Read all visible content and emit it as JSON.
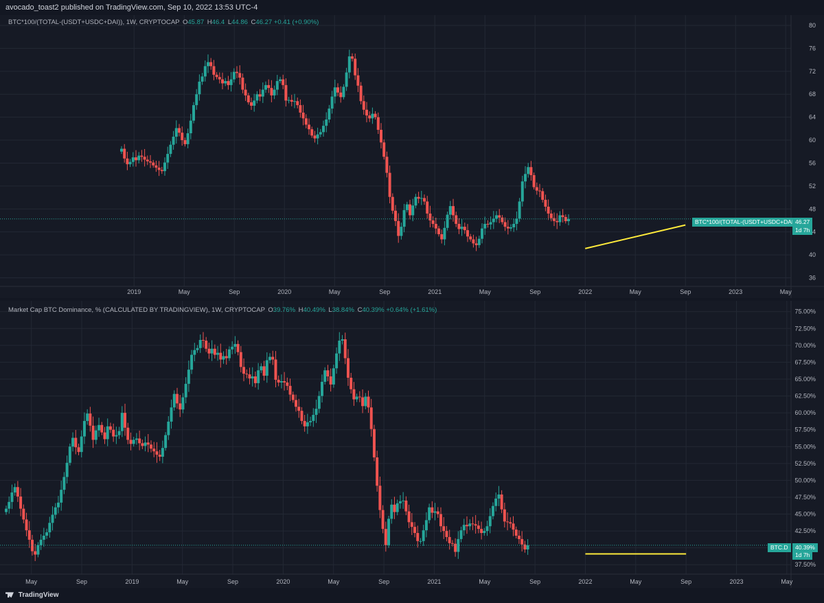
{
  "header": {
    "publish_text": "avocado_toast2 published on TradingView.com, Sep 10, 2022 13:53 UTC-4"
  },
  "footer": {
    "brand": "TradingView",
    "logo_icon": "tradingview-logo-icon"
  },
  "colors": {
    "up": "#26a69a",
    "down": "#ef5350",
    "trendline": "#ffeb3b",
    "background": "#161a25",
    "grid": "#232834"
  },
  "top_pane": {
    "symbol": "BTC*100/(TOTAL-(USDT+USDC+DAI)), 1W, CRYPTOCAP",
    "ohlc": {
      "o_label": "O",
      "o": "45.87",
      "h_label": "H",
      "h": "46.4",
      "l_label": "L",
      "l": "44.86",
      "c_label": "C",
      "c": "46.27",
      "change": "+0.41 (+0.90%)"
    },
    "price_tag": {
      "label": "BTC*100/(TOTAL-(USDT+USDC+DAI))",
      "value": "46.27",
      "countdown": "1d 7h"
    }
  },
  "bottom_pane": {
    "symbol": "Market Cap BTC Dominance, % (CALCULATED BY TRADINGVIEW), 1W, CRYPTOCAP",
    "ohlc": {
      "o_label": "O",
      "o": "39.76%",
      "h_label": "H",
      "h": "40.49%",
      "l_label": "L",
      "l": "38.84%",
      "c_label": "C",
      "c": "40.39%",
      "change": "+0.64% (+1.61%)"
    },
    "price_tag": {
      "label": "BTC.D",
      "value": "40.39%",
      "countdown": "1d 7h"
    }
  },
  "chart_data": [
    {
      "type": "candlestick",
      "title": "BTC*100/(TOTAL-(USDT+USDC+DAI)), 1W, CRYPTOCAP",
      "y_ticks": [
        "80",
        "76",
        "72",
        "68",
        "64",
        "60",
        "56",
        "52",
        "48",
        "44",
        "40",
        "36"
      ],
      "ylim": [
        34.5,
        81.8
      ],
      "x_ticks": [
        "2019",
        "May",
        "Sep",
        "2020",
        "May",
        "Sep",
        "2021",
        "May",
        "Sep",
        "2022",
        "May",
        "Sep",
        "2023",
        "May"
      ],
      "x_tick_dates": [
        "2019-01",
        "2019-05",
        "2019-09",
        "2020-01",
        "2020-05",
        "2020-09",
        "2021-01",
        "2021-05",
        "2021-09",
        "2022-01",
        "2022-05",
        "2022-09",
        "2023-01",
        "2023-05"
      ],
      "start_date": "2018-12",
      "close": [
        58.5,
        56.8,
        55.8,
        56.2,
        57.0,
        56.5,
        57.3,
        57.1,
        56.6,
        56.3,
        56.1,
        55.6,
        55.2,
        54.8,
        54.6,
        56.1,
        57.6,
        59.2,
        60.6,
        62.1,
        61.3,
        60.0,
        59.3,
        61.2,
        63.4,
        66.1,
        68.0,
        70.2,
        71.1,
        72.9,
        73.6,
        72.9,
        71.4,
        71.0,
        70.6,
        69.9,
        70.3,
        69.6,
        70.6,
        71.9,
        71.7,
        70.9,
        68.8,
        67.8,
        66.6,
        66.0,
        66.9,
        68.0,
        67.6,
        68.8,
        69.6,
        69.1,
        67.8,
        68.8,
        70.3,
        70.6,
        69.6,
        66.9,
        67.0,
        66.7,
        66.8,
        66.1,
        64.8,
        63.8,
        62.7,
        61.9,
        60.8,
        60.3,
        61.0,
        61.4,
        62.5,
        63.6,
        65.5,
        67.6,
        69.2,
        68.3,
        67.5,
        69.3,
        71.8,
        74.6,
        74.2,
        71.3,
        69.5,
        66.8,
        65.3,
        64.3,
        63.8,
        64.6,
        64.0,
        61.8,
        59.6,
        57.1,
        54.3,
        50.1,
        47.7,
        45.9,
        43.3,
        44.9,
        47.8,
        48.8,
        46.9,
        48.6,
        50.1,
        49.8,
        49.9,
        49.3,
        47.2,
        46.0,
        45.4,
        44.6,
        43.6,
        42.7,
        44.7,
        47.0,
        48.5,
        46.9,
        45.4,
        44.5,
        44.9,
        44.3,
        43.2,
        42.7,
        42.0,
        41.7,
        42.8,
        44.6,
        45.4,
        45.3,
        45.7,
        46.3,
        46.9,
        46.5,
        45.7,
        44.9,
        44.6,
        44.8,
        45.4,
        46.3,
        49.3,
        52.8,
        54.1,
        55.3,
        53.9,
        51.8,
        51.2,
        51.1,
        49.6,
        48.4,
        47.2,
        46.4,
        45.9,
        45.7,
        46.9,
        46.6,
        45.87,
        46.27
      ],
      "trendline": [
        {
          "date": "2022-01",
          "value": 41.1
        },
        {
          "date": "2022-09",
          "value": 45.2
        }
      ]
    },
    {
      "type": "candlestick",
      "title": "Market Cap BTC Dominance, % (CALCULATED BY TRADINGVIEW), 1W, CRYPTOCAP",
      "y_ticks": [
        "75.00%",
        "72.50%",
        "70.00%",
        "67.50%",
        "65.00%",
        "62.50%",
        "60.00%",
        "57.50%",
        "55.00%",
        "52.50%",
        "50.00%",
        "47.50%",
        "45.00%",
        "42.50%",
        "40.00%",
        "37.50%"
      ],
      "ylim": [
        36.1,
        76.6
      ],
      "x_ticks": [
        "May",
        "Sep",
        "2019",
        "May",
        "Sep",
        "2020",
        "May",
        "Sep",
        "2021",
        "May",
        "Sep",
        "2022",
        "May",
        "Sep",
        "2023",
        "May"
      ],
      "x_tick_dates": [
        "2018-05",
        "2018-09",
        "2019-01",
        "2019-05",
        "2019-09",
        "2020-01",
        "2020-05",
        "2020-09",
        "2021-01",
        "2021-05",
        "2021-09",
        "2022-01",
        "2022-05",
        "2022-09",
        "2023-01",
        "2023-05"
      ],
      "start_date": "2018-03",
      "close": [
        45.8,
        46.8,
        48.2,
        49.0,
        47.6,
        45.8,
        44.2,
        42.6,
        41.2,
        39.5,
        39.0,
        40.4,
        41.2,
        41.8,
        42.3,
        43.7,
        44.9,
        46.0,
        46.7,
        48.6,
        50.5,
        52.6,
        55.0,
        56.3,
        54.9,
        54.2,
        56.5,
        58.8,
        59.9,
        58.1,
        56.0,
        57.4,
        58.2,
        57.1,
        56.1,
        58.0,
        57.5,
        56.5,
        56.7,
        57.3,
        60.0,
        57.8,
        56.0,
        55.4,
        56.0,
        56.2,
        55.5,
        55.1,
        55.6,
        55.3,
        54.7,
        54.3,
        53.8,
        53.5,
        54.8,
        56.7,
        58.7,
        60.8,
        62.8,
        61.4,
        60.5,
        62.3,
        64.3,
        66.4,
        68.6,
        69.3,
        69.6,
        70.8,
        70.7,
        69.5,
        68.8,
        69.5,
        68.6,
        68.9,
        67.9,
        68.4,
        68.1,
        69.4,
        69.8,
        70.2,
        69.0,
        66.8,
        65.8,
        65.7,
        65.1,
        65.4,
        64.4,
        66.3,
        66.9,
        65.5,
        67.8,
        68.3,
        67.9,
        64.9,
        64.5,
        64.7,
        64.5,
        64.0,
        62.7,
        61.9,
        60.9,
        60.3,
        58.8,
        58.0,
        58.6,
        58.8,
        59.7,
        60.6,
        62.5,
        64.6,
        66.3,
        65.4,
        64.2,
        66.6,
        68.8,
        70.7,
        70.9,
        68.1,
        65.2,
        63.5,
        62.0,
        62.4,
        62.3,
        61.0,
        62.4,
        60.8,
        57.6,
        53.4,
        49.2,
        45.6,
        42.8,
        40.4,
        44.3,
        46.4,
        45.3,
        46.6,
        46.9,
        47.0,
        45.4,
        43.8,
        43.1,
        42.2,
        41.0,
        41.0,
        42.6,
        44.1,
        46.0,
        45.2,
        45.4,
        45.0,
        43.2,
        42.5,
        41.6,
        40.7,
        40.6,
        39.4,
        41.3,
        42.6,
        43.4,
        43.2,
        43.6,
        43.5,
        43.3,
        42.8,
        42.2,
        42.5,
        43.2,
        44.7,
        46.2,
        47.3,
        47.9,
        45.7,
        43.9,
        43.8,
        43.6,
        42.7,
        41.8,
        41.3,
        40.5,
        39.76,
        40.39
      ],
      "trendline": [
        {
          "date": "2022-01",
          "value": 39.1
        },
        {
          "date": "2022-09",
          "value": 39.1
        }
      ]
    }
  ]
}
